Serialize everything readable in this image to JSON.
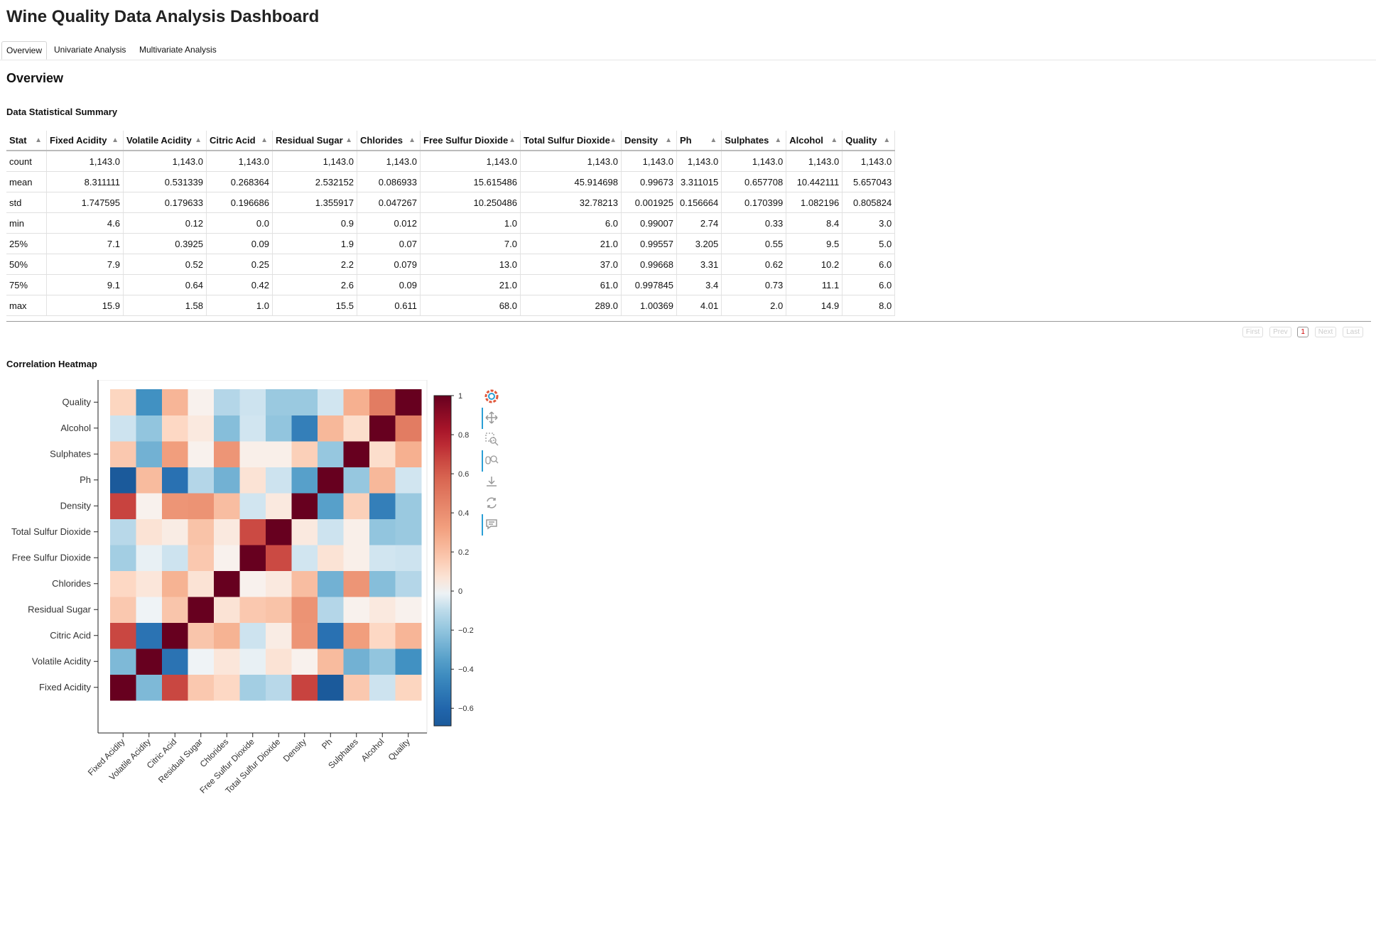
{
  "header": {
    "title": "Wine Quality Data Analysis Dashboard"
  },
  "tabs": [
    {
      "label": "Overview",
      "active": true
    },
    {
      "label": "Univariate Analysis",
      "active": false
    },
    {
      "label": "Multivariate Analysis",
      "active": false
    }
  ],
  "overview": {
    "title": "Overview",
    "summary_title": "Data Statistical Summary",
    "heatmap_title": "Correlation Heatmap"
  },
  "table": {
    "columns": [
      "Stat",
      "Fixed Acidity",
      "Volatile Acidity",
      "Citric Acid",
      "Residual Sugar",
      "Chlorides",
      "Free Sulfur Dioxide",
      "Total Sulfur Dioxide",
      "Density",
      "Ph",
      "Sulphates",
      "Alcohol",
      "Quality"
    ],
    "rows": [
      [
        "count",
        "1,143.0",
        "1,143.0",
        "1,143.0",
        "1,143.0",
        "1,143.0",
        "1,143.0",
        "1,143.0",
        "1,143.0",
        "1,143.0",
        "1,143.0",
        "1,143.0",
        "1,143.0"
      ],
      [
        "mean",
        "8.311111",
        "0.531339",
        "0.268364",
        "2.532152",
        "0.086933",
        "15.615486",
        "45.914698",
        "0.99673",
        "3.311015",
        "0.657708",
        "10.442111",
        "5.657043"
      ],
      [
        "std",
        "1.747595",
        "0.179633",
        "0.196686",
        "1.355917",
        "0.047267",
        "10.250486",
        "32.78213",
        "0.001925",
        "0.156664",
        "0.170399",
        "1.082196",
        "0.805824"
      ],
      [
        "min",
        "4.6",
        "0.12",
        "0.0",
        "0.9",
        "0.012",
        "1.0",
        "6.0",
        "0.99007",
        "2.74",
        "0.33",
        "8.4",
        "3.0"
      ],
      [
        "25%",
        "7.1",
        "0.3925",
        "0.09",
        "1.9",
        "0.07",
        "7.0",
        "21.0",
        "0.99557",
        "3.205",
        "0.55",
        "9.5",
        "5.0"
      ],
      [
        "50%",
        "7.9",
        "0.52",
        "0.25",
        "2.2",
        "0.079",
        "13.0",
        "37.0",
        "0.99668",
        "3.31",
        "0.62",
        "10.2",
        "6.0"
      ],
      [
        "75%",
        "9.1",
        "0.64",
        "0.42",
        "2.6",
        "0.09",
        "21.0",
        "61.0",
        "0.997845",
        "3.4",
        "0.73",
        "11.1",
        "6.0"
      ],
      [
        "max",
        "15.9",
        "1.58",
        "1.0",
        "15.5",
        "0.611",
        "68.0",
        "289.0",
        "1.00369",
        "4.01",
        "2.0",
        "14.9",
        "8.0"
      ]
    ]
  },
  "pager": {
    "first": "First",
    "prev": "Prev",
    "page": "1",
    "next": "Next",
    "last": "Last"
  },
  "chart_data": {
    "type": "heatmap",
    "x": [
      "Fixed Acidity",
      "Volatile Acidity",
      "Citric Acid",
      "Residual Sugar",
      "Chlorides",
      "Free Sulfur Dioxide",
      "Total Sulfur Dioxide",
      "Density",
      "Ph",
      "Sulphates",
      "Alcohol",
      "Quality"
    ],
    "y": [
      "Fixed Acidity",
      "Volatile Acidity",
      "Citric Acid",
      "Residual Sugar",
      "Chlorides",
      "Free Sulfur Dioxide",
      "Total Sulfur Dioxide",
      "Density",
      "Ph",
      "Sulphates",
      "Alcohol",
      "Quality"
    ],
    "values": [
      [
        1.0,
        -0.25,
        0.67,
        0.17,
        0.11,
        -0.16,
        -0.11,
        0.68,
        -0.69,
        0.17,
        -0.06,
        0.12
      ],
      [
        -0.25,
        1.0,
        -0.54,
        -0.01,
        0.06,
        -0.02,
        0.07,
        0.02,
        0.22,
        -0.28,
        -0.2,
        -0.41
      ],
      [
        0.67,
        -0.54,
        1.0,
        0.18,
        0.25,
        -0.06,
        0.04,
        0.37,
        -0.55,
        0.33,
        0.11,
        0.24
      ],
      [
        0.17,
        -0.01,
        0.18,
        1.0,
        0.07,
        0.17,
        0.19,
        0.38,
        -0.12,
        0.02,
        0.05,
        0.02
      ],
      [
        0.11,
        0.06,
        0.25,
        0.07,
        1.0,
        0.02,
        0.05,
        0.21,
        -0.28,
        0.37,
        -0.23,
        -0.12
      ],
      [
        -0.16,
        -0.02,
        -0.06,
        0.17,
        0.02,
        1.0,
        0.66,
        -0.05,
        0.07,
        0.03,
        -0.05,
        -0.06
      ],
      [
        -0.11,
        0.07,
        0.04,
        0.19,
        0.05,
        0.66,
        1.0,
        0.05,
        -0.06,
        0.03,
        -0.2,
        -0.18
      ],
      [
        0.68,
        0.02,
        0.37,
        0.38,
        0.21,
        -0.05,
        0.05,
        1.0,
        -0.35,
        0.14,
        -0.49,
        -0.18
      ],
      [
        -0.69,
        0.22,
        -0.55,
        -0.12,
        -0.28,
        0.07,
        -0.06,
        -0.35,
        1.0,
        -0.19,
        0.23,
        -0.05
      ],
      [
        0.17,
        -0.28,
        0.33,
        0.02,
        0.37,
        0.03,
        0.03,
        0.14,
        -0.19,
        1.0,
        0.09,
        0.26
      ],
      [
        -0.06,
        -0.2,
        0.11,
        0.05,
        -0.23,
        -0.05,
        -0.2,
        -0.49,
        0.23,
        0.09,
        1.0,
        0.48
      ],
      [
        0.12,
        -0.41,
        0.24,
        0.02,
        -0.12,
        -0.06,
        -0.18,
        -0.18,
        -0.05,
        0.26,
        0.48,
        1.0
      ]
    ],
    "colorbar": {
      "min": -0.69,
      "max": 1.0,
      "ticks": [
        -0.6,
        -0.4,
        -0.2,
        0,
        0.2,
        0.4,
        0.6,
        0.8,
        1
      ],
      "tick_labels": [
        "−0.6",
        "−0.4",
        "−0.2",
        "0",
        "0.2",
        "0.4",
        "0.6",
        "0.8",
        "1"
      ],
      "colormap": "RdBu_r"
    }
  },
  "toolbar": {
    "tools": [
      "bokeh-logo-icon",
      "pan-icon",
      "box-zoom-icon",
      "wheel-zoom-icon",
      "save-icon",
      "reset-icon",
      "hover-icon"
    ]
  },
  "colors": {
    "accent": "#2a9fd6",
    "pager_current": "#cc0000"
  }
}
